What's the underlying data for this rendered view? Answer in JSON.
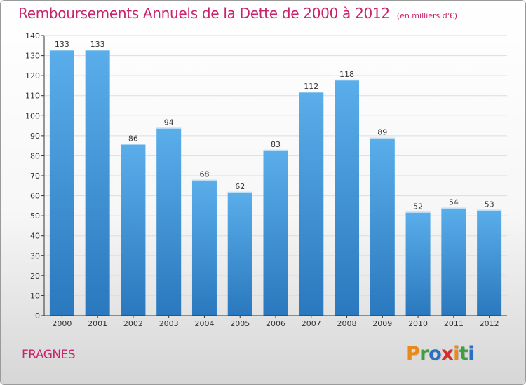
{
  "chart_data": {
    "type": "bar",
    "title": "Remboursements Annuels de la Dette de 2000 à 2012",
    "subtitle": "(en milliers d'€)",
    "categories": [
      "2000",
      "2001",
      "2002",
      "2003",
      "2004",
      "2005",
      "2006",
      "2007",
      "2008",
      "2009",
      "2010",
      "2011",
      "2012"
    ],
    "values": [
      133,
      133,
      86,
      94,
      68,
      62,
      83,
      112,
      118,
      89,
      52,
      54,
      53
    ],
    "value_labels": [
      "133",
      "133",
      "86",
      "94",
      "68",
      "62",
      "83",
      "112",
      "118",
      "89",
      "52",
      "54",
      "53"
    ],
    "ylim": [
      0,
      140
    ],
    "yticks": [
      0,
      10,
      20,
      30,
      40,
      50,
      60,
      70,
      80,
      90,
      100,
      110,
      120,
      130,
      140
    ],
    "ytick_labels": [
      "0",
      "10",
      "20",
      "30",
      "40",
      "50",
      "60",
      "70",
      "80",
      "90",
      "100",
      "110",
      "120",
      "130",
      "140"
    ],
    "grid": true,
    "legend": "none",
    "bar_color": "#3d8fd6"
  },
  "footer": {
    "place": "FRAGNES"
  },
  "logo": {
    "text": "Proxiti",
    "letter_colors": [
      "#e8891c",
      "#3aa23a",
      "#2b6fc0",
      "#d62c2c",
      "#e8891c",
      "#3aa23a",
      "#2b6fc0"
    ]
  },
  "colors": {
    "title": "#c8246c",
    "axis": "#333333",
    "grid": "#dddddd"
  }
}
